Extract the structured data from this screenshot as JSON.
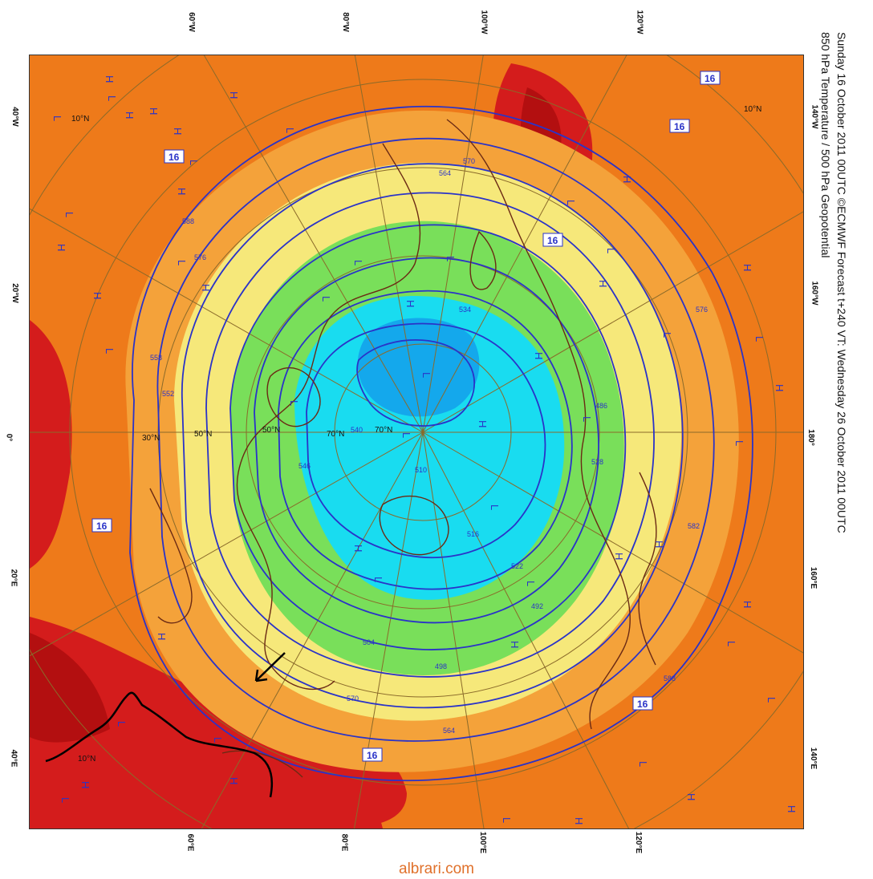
{
  "header": {
    "line1": "Sunday 16 October 2011 00UTC ©ECMWF Forecast t+240 VT: Wednesday 26 October 2011 00UTC",
    "line2": "850 hPa Temperature / 500 hPa Geopotential"
  },
  "longitude_labels": {
    "top": [
      "60°W",
      "80°W",
      "100°W",
      "120°W"
    ],
    "bottom": [
      "60°E",
      "80°E",
      "100°E",
      "120°E"
    ],
    "left": [
      "40°W",
      "20°W",
      "0°",
      "20°E",
      "40°E"
    ],
    "right": [
      "140°W",
      "160°W",
      "180°",
      "160°E",
      "140°E"
    ]
  },
  "latitude_labels": [
    "10°N",
    "30°N",
    "50°N",
    "70°N",
    "10°N",
    "10°N",
    "50°N",
    "70°N"
  ],
  "temperature_box_labels": [
    "16",
    "16",
    "16",
    "16",
    "16",
    "16",
    "16"
  ],
  "geopotential_labels": [
    "588",
    "576",
    "570",
    "564",
    "558",
    "552",
    "546",
    "540",
    "534",
    "528",
    "522",
    "516",
    "510",
    "504",
    "498",
    "492",
    "486",
    "582",
    "576",
    "588",
    "570",
    "564"
  ],
  "pressure_marks": {
    "high": "H",
    "low": "L"
  },
  "annotation": {
    "arrow": "pointer-arrow",
    "outline": "highlighted-region-outline"
  },
  "colors": {
    "hot": "#d41c1c",
    "very_hot": "#b30f10",
    "warm": "#ee7a1a",
    "mild": "#f4a23a",
    "cool_yellow": "#f6e87a",
    "cool_green": "#79df5a",
    "cold_cyan": "#19dcf0",
    "colder": "#14a8ec",
    "contour": "#2a33c8",
    "coast": "#6b2a14",
    "grid": "#8a6a2a"
  },
  "watermark": "albrari.com"
}
